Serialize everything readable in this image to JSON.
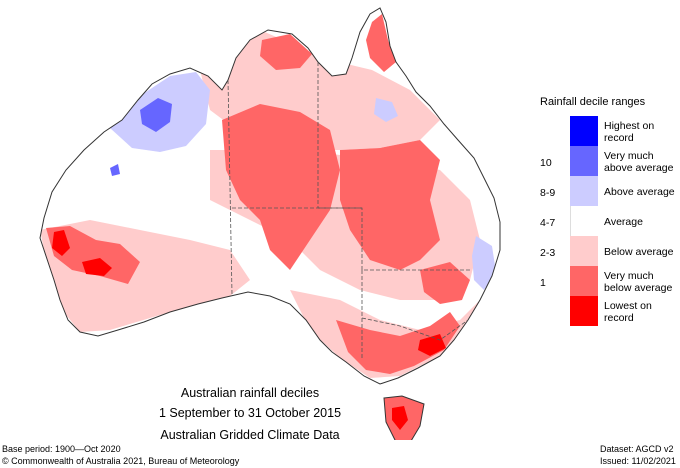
{
  "title": {
    "line1": "Australian rainfall deciles",
    "line2": "1 September to 31 October 2015",
    "line3": "Australian Gridded Climate Data"
  },
  "legend": {
    "title": "Rainfall decile ranges",
    "items": [
      {
        "label": "Highest on record",
        "decile": "",
        "color": "#0000ff"
      },
      {
        "label": "Very much above average",
        "decile": "10",
        "color": "#6666ff"
      },
      {
        "label": "Above average",
        "decile": "8-9",
        "color": "#ccccff"
      },
      {
        "label": "Average",
        "decile": "4-7",
        "color": "#ffffff"
      },
      {
        "label": "Below average",
        "decile": "2-3",
        "color": "#ffcccc"
      },
      {
        "label": "Very much below average",
        "decile": "1",
        "color": "#ff6666"
      },
      {
        "label": "Lowest on record",
        "decile": "",
        "color": "#ff0000"
      }
    ]
  },
  "footer": {
    "base_period": "Base period: 1900—Oct 2020",
    "dataset": "Dataset: AGCD v2",
    "copyright": "© Commonwealth of Australia 2021, Bureau of Meteorology",
    "issued": "Issued: 11/02/2021"
  }
}
